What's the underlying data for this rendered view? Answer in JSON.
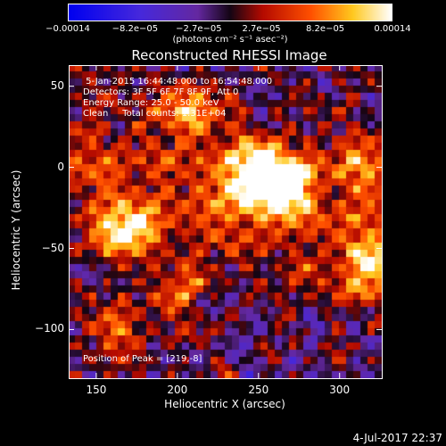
{
  "chart_data": {
    "type": "heatmap",
    "title": "Reconstructed RHESSI Image",
    "xlabel": "Heliocentric X (arcsec)",
    "ylabel": "Heliocentric Y (arcsec)",
    "xlim": [
      133,
      326
    ],
    "ylim": [
      -130,
      63
    ],
    "x_ticks": [
      150,
      200,
      250,
      300
    ],
    "y_ticks": [
      50,
      0,
      -50,
      -100
    ],
    "x_tick_labels": [
      "150",
      "200",
      "250",
      "300"
    ],
    "y_tick_labels": [
      "50",
      "0",
      "−50",
      "−100"
    ],
    "colorbar": {
      "min": -0.00014,
      "max": 0.00014,
      "tick_values": [
        -0.00014,
        -8.2e-05,
        -2.7e-05,
        2.7e-05,
        8.2e-05,
        0.00014
      ],
      "tick_labels": [
        "−0.00014",
        "−8.2e−05",
        "−2.7e−05",
        "2.7e−05",
        "8.2e−05",
        "0.00014"
      ],
      "unit_label": "(photons cm⁻² s⁻¹ asec⁻²)"
    },
    "info_lines": [
      " 5-Jan-2015 16:44:48.000 to 16:54:48.000",
      "Detectors: 3F 5F 6F 7F 8F 9F, Att 0",
      "Energy Range: 25.0 - 50.0 keV",
      "Clean     Total counts: 1.31E+04"
    ],
    "peak_label": "Position of Peak = [219,-8]",
    "peak_position": [
      219,
      -8
    ],
    "bright_sources": [
      {
        "x": 167,
        "y": -40,
        "value": 0.00014
      },
      {
        "x": 263,
        "y": -12,
        "value": 0.00014
      },
      {
        "x": 248,
        "y": -5,
        "value": 0.00012
      },
      {
        "x": 209,
        "y": 35,
        "value": 9e-05
      },
      {
        "x": 313,
        "y": 0,
        "value": 8e-05
      },
      {
        "x": 320,
        "y": -62,
        "value": 0.0001
      },
      {
        "x": 160,
        "y": -100,
        "value": 7e-05
      },
      {
        "x": 205,
        "y": -78,
        "value": 6e-05
      }
    ]
  },
  "timestamp": "4-Jul-2017 22:37"
}
